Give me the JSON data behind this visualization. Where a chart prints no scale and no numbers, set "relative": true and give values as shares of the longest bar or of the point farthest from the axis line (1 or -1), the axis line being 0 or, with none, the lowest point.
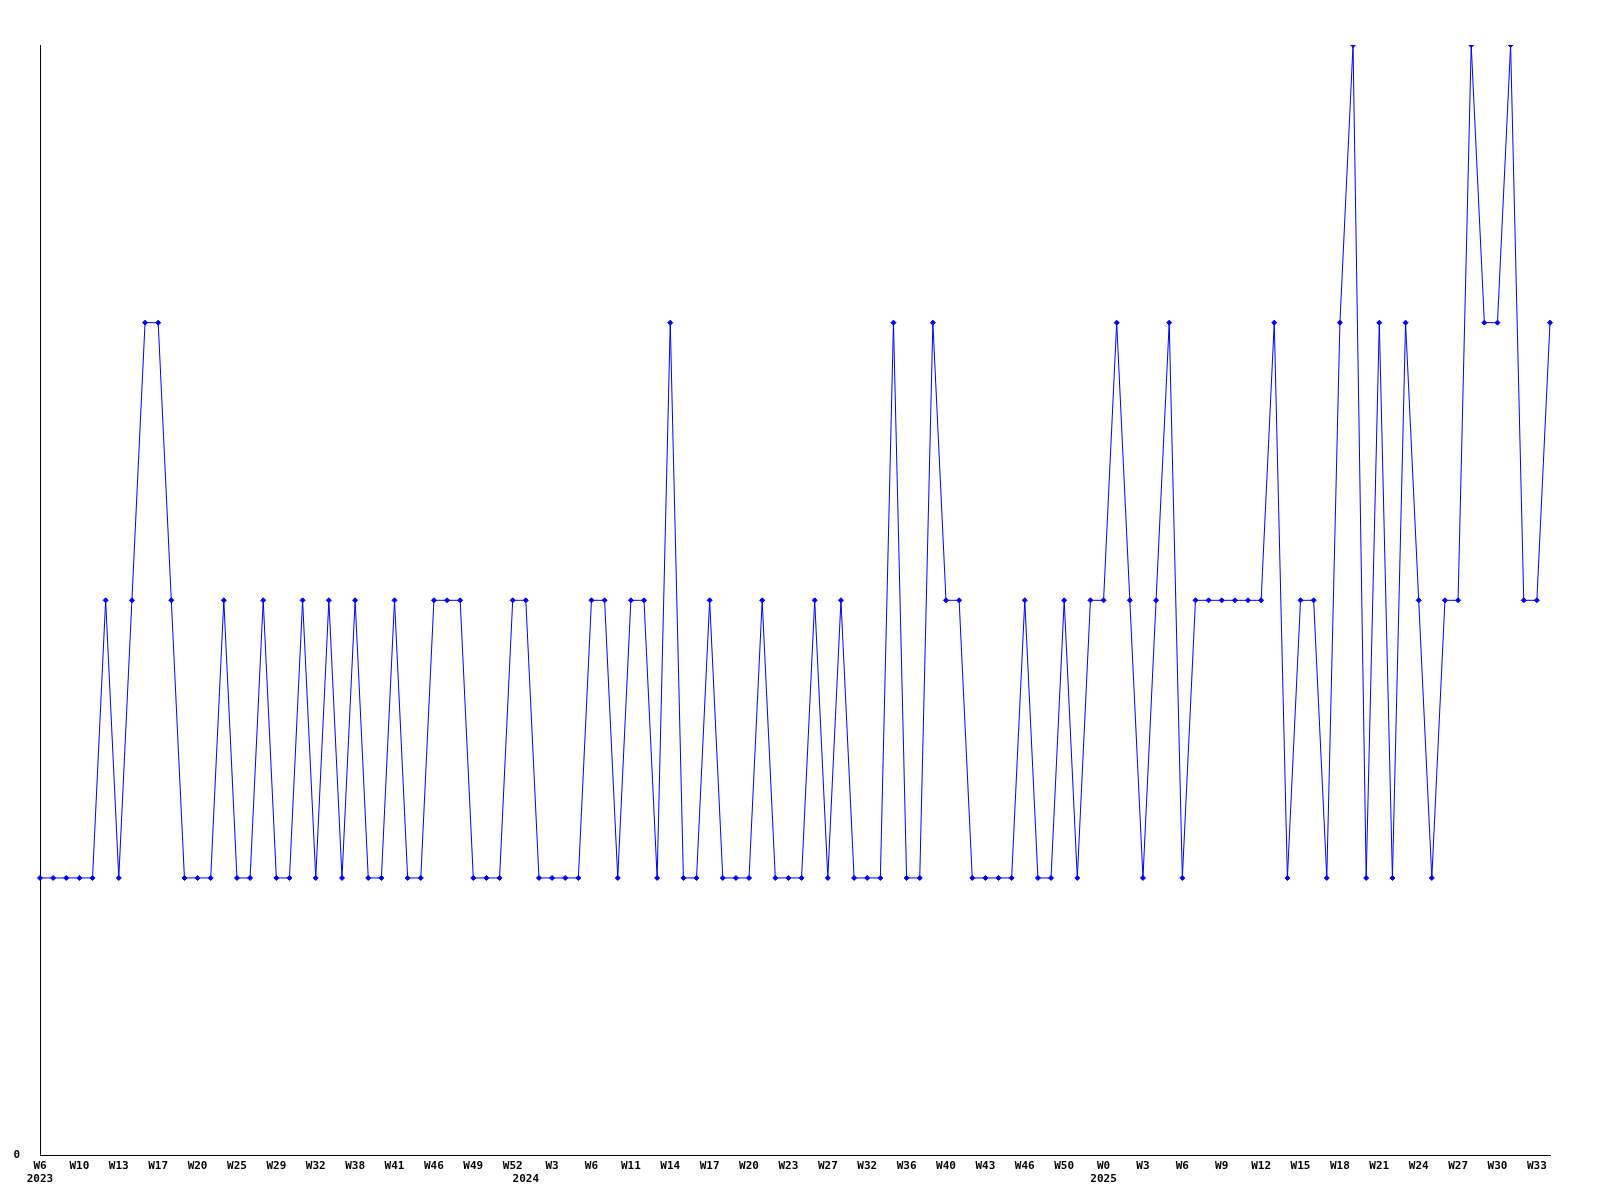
{
  "chart_data": {
    "type": "line",
    "relative": true,
    "color": "#0000ff",
    "marker": "diamond",
    "grid": false,
    "legend": false,
    "annotations": [
      "0"
    ],
    "categories": [
      "W6\n2023",
      null,
      null,
      "W10",
      null,
      null,
      "W13",
      null,
      null,
      "W17",
      null,
      null,
      "W20",
      null,
      null,
      "W25",
      null,
      null,
      "W29",
      null,
      null,
      "W32",
      null,
      null,
      "W38",
      null,
      null,
      "W41",
      null,
      null,
      "W46",
      null,
      null,
      "W49",
      null,
      null,
      "W52",
      "\n2024",
      null,
      "W3",
      null,
      null,
      "W6",
      null,
      null,
      "W11",
      null,
      null,
      "W14",
      null,
      null,
      "W17",
      null,
      null,
      "W20",
      null,
      null,
      "W23",
      null,
      null,
      "W27",
      null,
      null,
      "W32",
      null,
      null,
      "W36",
      null,
      null,
      "W40",
      null,
      null,
      "W43",
      null,
      null,
      "W46",
      null,
      null,
      "W50",
      null,
      null,
      "W0\n2025",
      null,
      null,
      "W3",
      null,
      null,
      "W6",
      null,
      null,
      "W9",
      null,
      null,
      "W12",
      null,
      null,
      "W15",
      null,
      null,
      "W18",
      null,
      null,
      "W21",
      null,
      null,
      "W24",
      null,
      null,
      "W27",
      null,
      null,
      "W30",
      null,
      null,
      "W33",
      null
    ],
    "values": [
      0.25,
      0.25,
      0.25,
      0.25,
      0.25,
      0.5,
      0.25,
      0.5,
      0.75,
      0.75,
      0.5,
      0.25,
      0.25,
      0.25,
      0.5,
      0.25,
      0.25,
      0.5,
      0.25,
      0.25,
      0.5,
      0.25,
      0.5,
      0.25,
      0.5,
      0.25,
      0.25,
      0.5,
      0.25,
      0.25,
      0.5,
      0.5,
      0.5,
      0.25,
      0.25,
      0.25,
      0.5,
      0.5,
      0.25,
      0.25,
      0.25,
      0.25,
      0.5,
      0.5,
      0.25,
      0.5,
      0.5,
      0.25,
      0.75,
      0.25,
      0.25,
      0.5,
      0.25,
      0.25,
      0.25,
      0.5,
      0.25,
      0.25,
      0.25,
      0.5,
      0.25,
      0.5,
      0.25,
      0.25,
      0.25,
      0.75,
      0.25,
      0.25,
      0.75,
      0.5,
      0.5,
      0.25,
      0.25,
      0.25,
      0.25,
      0.5,
      0.25,
      0.25,
      0.5,
      0.25,
      0.5,
      0.5,
      0.75,
      0.5,
      0.25,
      0.5,
      0.75,
      0.25,
      0.5,
      0.5,
      0.5,
      0.5,
      0.5,
      0.5,
      0.75,
      0.25,
      0.5,
      0.5,
      0.25,
      0.75,
      1,
      0.25,
      0.75,
      0.25,
      0.75,
      0.5,
      0.25,
      0.5,
      0.5,
      1,
      0.75,
      0.75,
      1,
      0.5,
      0.5,
      0.75
    ]
  }
}
